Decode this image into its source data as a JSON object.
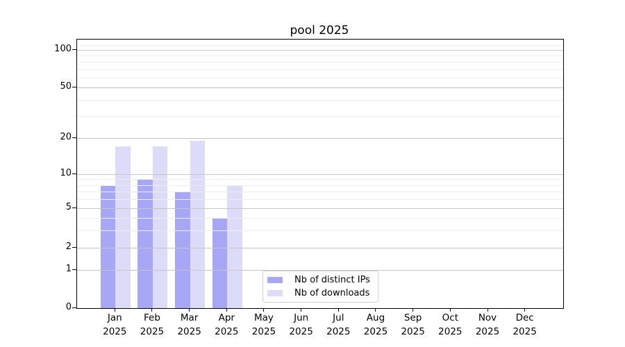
{
  "chart_data": {
    "type": "bar",
    "title": "pool 2025",
    "year_label": "2025",
    "categories": [
      "Jan",
      "Feb",
      "Mar",
      "Apr",
      "May",
      "Jun",
      "Jul",
      "Aug",
      "Sep",
      "Oct",
      "Nov",
      "Dec"
    ],
    "series": [
      {
        "name": "Nb of distinct IPs",
        "color": "#a7a7f5",
        "values": [
          8,
          9,
          7,
          4,
          0,
          0,
          0,
          0,
          0,
          0,
          0,
          0
        ]
      },
      {
        "name": "Nb of downloads",
        "color": "#dcdcf9",
        "values": [
          17,
          17,
          19,
          8,
          0,
          0,
          0,
          0,
          0,
          0,
          0,
          0
        ]
      }
    ],
    "y_axis": {
      "scale": "log-like",
      "ticks": [
        0,
        1,
        2,
        5,
        10,
        20,
        50,
        100
      ],
      "range": [
        0,
        120
      ]
    },
    "x_axis": {
      "tick_label_format": "Month + 2025, two lines"
    },
    "grid": {
      "major": true,
      "minor": true
    },
    "legend": {
      "position": "lower-center",
      "entries": [
        "Nb of distinct IPs",
        "Nb of downloads"
      ]
    }
  },
  "colors": {
    "bar_dark": "#a7a7f5",
    "bar_light": "#dcdcf9",
    "grid_major": "#c6c6c6",
    "grid_minor": "#ededed",
    "axis": "#000000",
    "legend_border": "#d2d2d2",
    "background": "#ffffff"
  }
}
